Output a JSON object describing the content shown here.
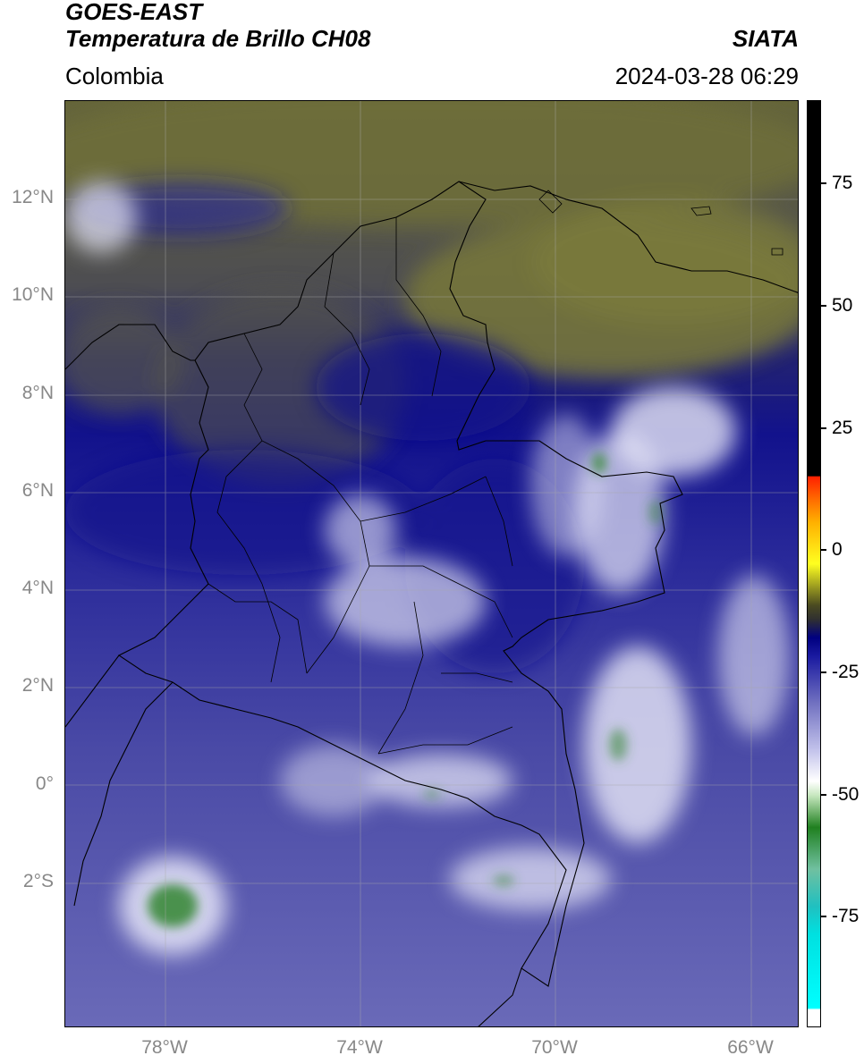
{
  "header": {
    "satellite": "GOES-EAST",
    "product": "Temperatura de Brillo CH08",
    "organization": "SIATA",
    "region": "Colombia",
    "timestamp": "2024-03-28 06:29"
  },
  "axes": {
    "lat_labels": [
      "12°N",
      "10°N",
      "8°N",
      "6°N",
      "4°N",
      "2°N",
      "0°",
      "2°S"
    ],
    "lon_labels": [
      "78°W",
      "74°W",
      "70°W",
      "66°W"
    ]
  },
  "colorbar": {
    "labels": [
      "75",
      "50",
      "25",
      "0",
      "-25",
      "-50",
      "-75"
    ],
    "range": [
      -95,
      90
    ]
  },
  "colors": {
    "olive": "#6f6f3a",
    "dark_navy": "#10108a",
    "mid_blue": "#4a4aa8",
    "light_blue": "#9a9ad2",
    "cloud_white": "#f2f2fb",
    "cold_green": "#3a8a3a"
  }
}
